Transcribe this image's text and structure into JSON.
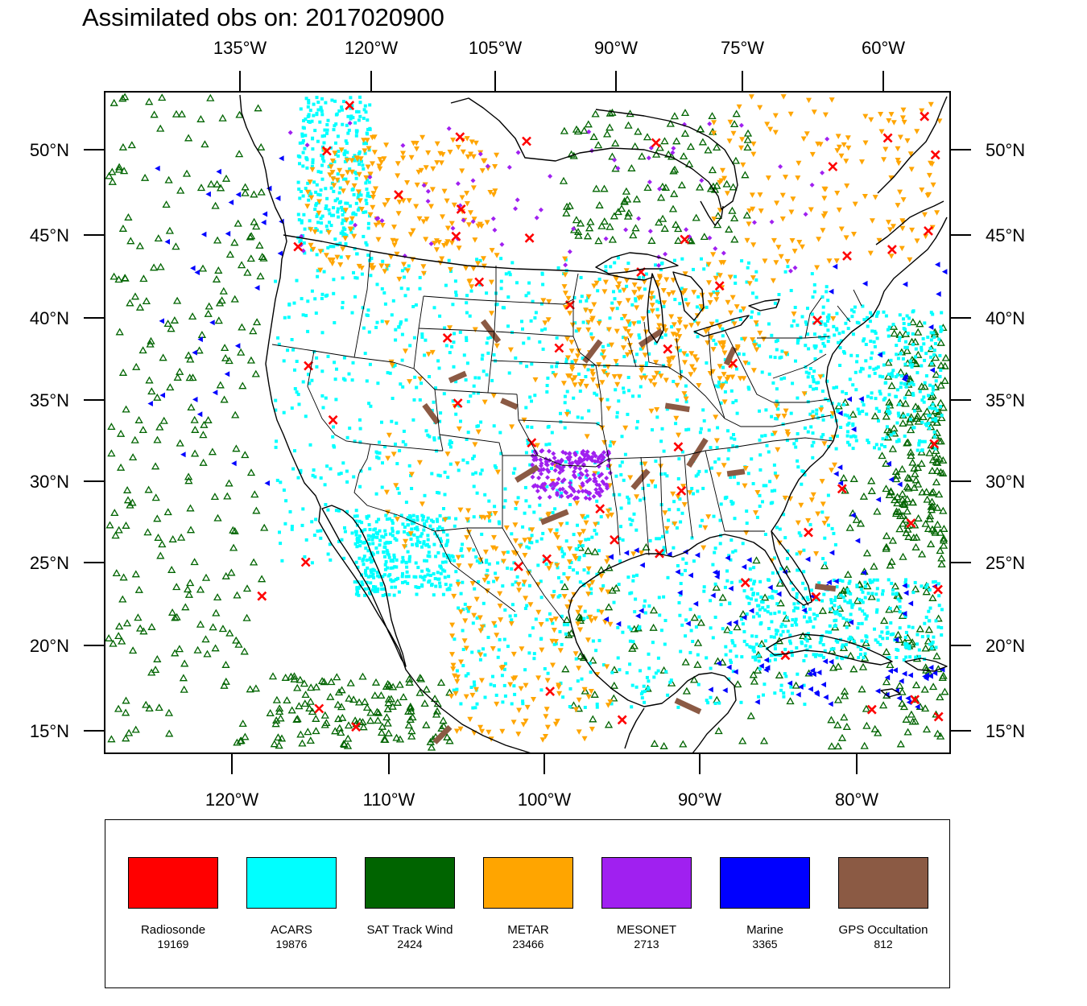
{
  "title": "Assimilated obs on: 2017020900",
  "axes": {
    "top_lon_labels": [
      "135°W",
      "120°W",
      "105°W",
      "90°W",
      "75°W",
      "60°W"
    ],
    "bottom_lon_labels": [
      "120°W",
      "110°W",
      "100°W",
      "90°W",
      "80°W"
    ],
    "lat_labels": [
      "50°N",
      "45°N",
      "40°N",
      "35°N",
      "30°N",
      "25°N",
      "20°N",
      "15°N"
    ]
  },
  "legend": [
    {
      "name": "Radiosonde",
      "count": "19169",
      "color": "#ff0000",
      "marker": "x-mark-icon"
    },
    {
      "name": "ACARS",
      "count": "19876",
      "color": "#00ffff",
      "marker": "square-dot-icon"
    },
    {
      "name": "SAT Track Wind",
      "count": "2424",
      "color": "#006400",
      "marker": "triangle-up-icon"
    },
    {
      "name": "METAR",
      "count": "23466",
      "color": "#ffa500",
      "marker": "triangle-down-icon"
    },
    {
      "name": "MESONET",
      "count": "2713",
      "color": "#a020f0",
      "marker": "diamond-icon"
    },
    {
      "name": "Marine",
      "count": "3365",
      "color": "#0000ff",
      "marker": "triangle-left-icon"
    },
    {
      "name": "GPS Occultation",
      "count": "812",
      "color": "#8b5a44",
      "marker": "segment-icon"
    }
  ]
}
